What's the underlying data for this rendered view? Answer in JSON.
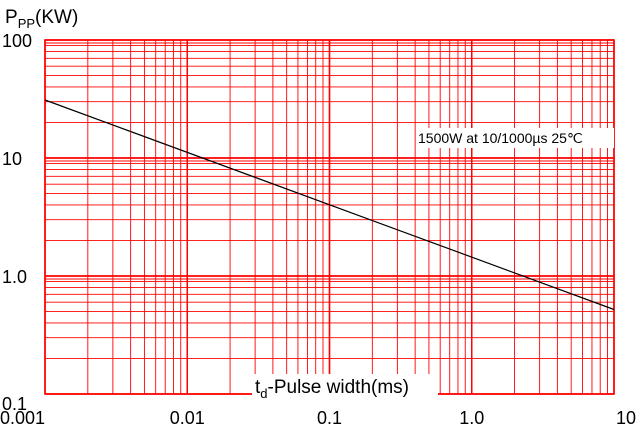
{
  "chart_data": {
    "type": "line",
    "title": "",
    "x_scale": "log",
    "y_scale": "log",
    "xlim": [
      0.001,
      10
    ],
    "ylim": [
      0.1,
      100
    ],
    "grid": true,
    "grid_color": "#ff0000",
    "line_color": "#000000",
    "ylabel": {
      "main": "P",
      "sub": "PP",
      "rest": "(KW)"
    },
    "xlabel": {
      "main": "t",
      "sub": "d",
      "rest": "-Pulse width(ms)"
    },
    "x_tick_labels": [
      {
        "value": 0.001,
        "label": "0.001"
      },
      {
        "value": 0.01,
        "label": "0.01"
      },
      {
        "value": 0.1,
        "label": "0.1"
      },
      {
        "value": 1,
        "label": "1.0"
      },
      {
        "value": 10,
        "label": "10"
      }
    ],
    "y_tick_labels": [
      {
        "value": 100,
        "label": "100"
      },
      {
        "value": 10,
        "label": "10"
      },
      {
        "value": 1,
        "label": "1.0"
      },
      {
        "value": 0.1,
        "label": "0.1"
      }
    ],
    "annotation": "1500W at 10/1000µs 25℃",
    "series": [
      {
        "x": [
          0.001,
          10
        ],
        "y": [
          31,
          0.52
        ]
      }
    ]
  }
}
